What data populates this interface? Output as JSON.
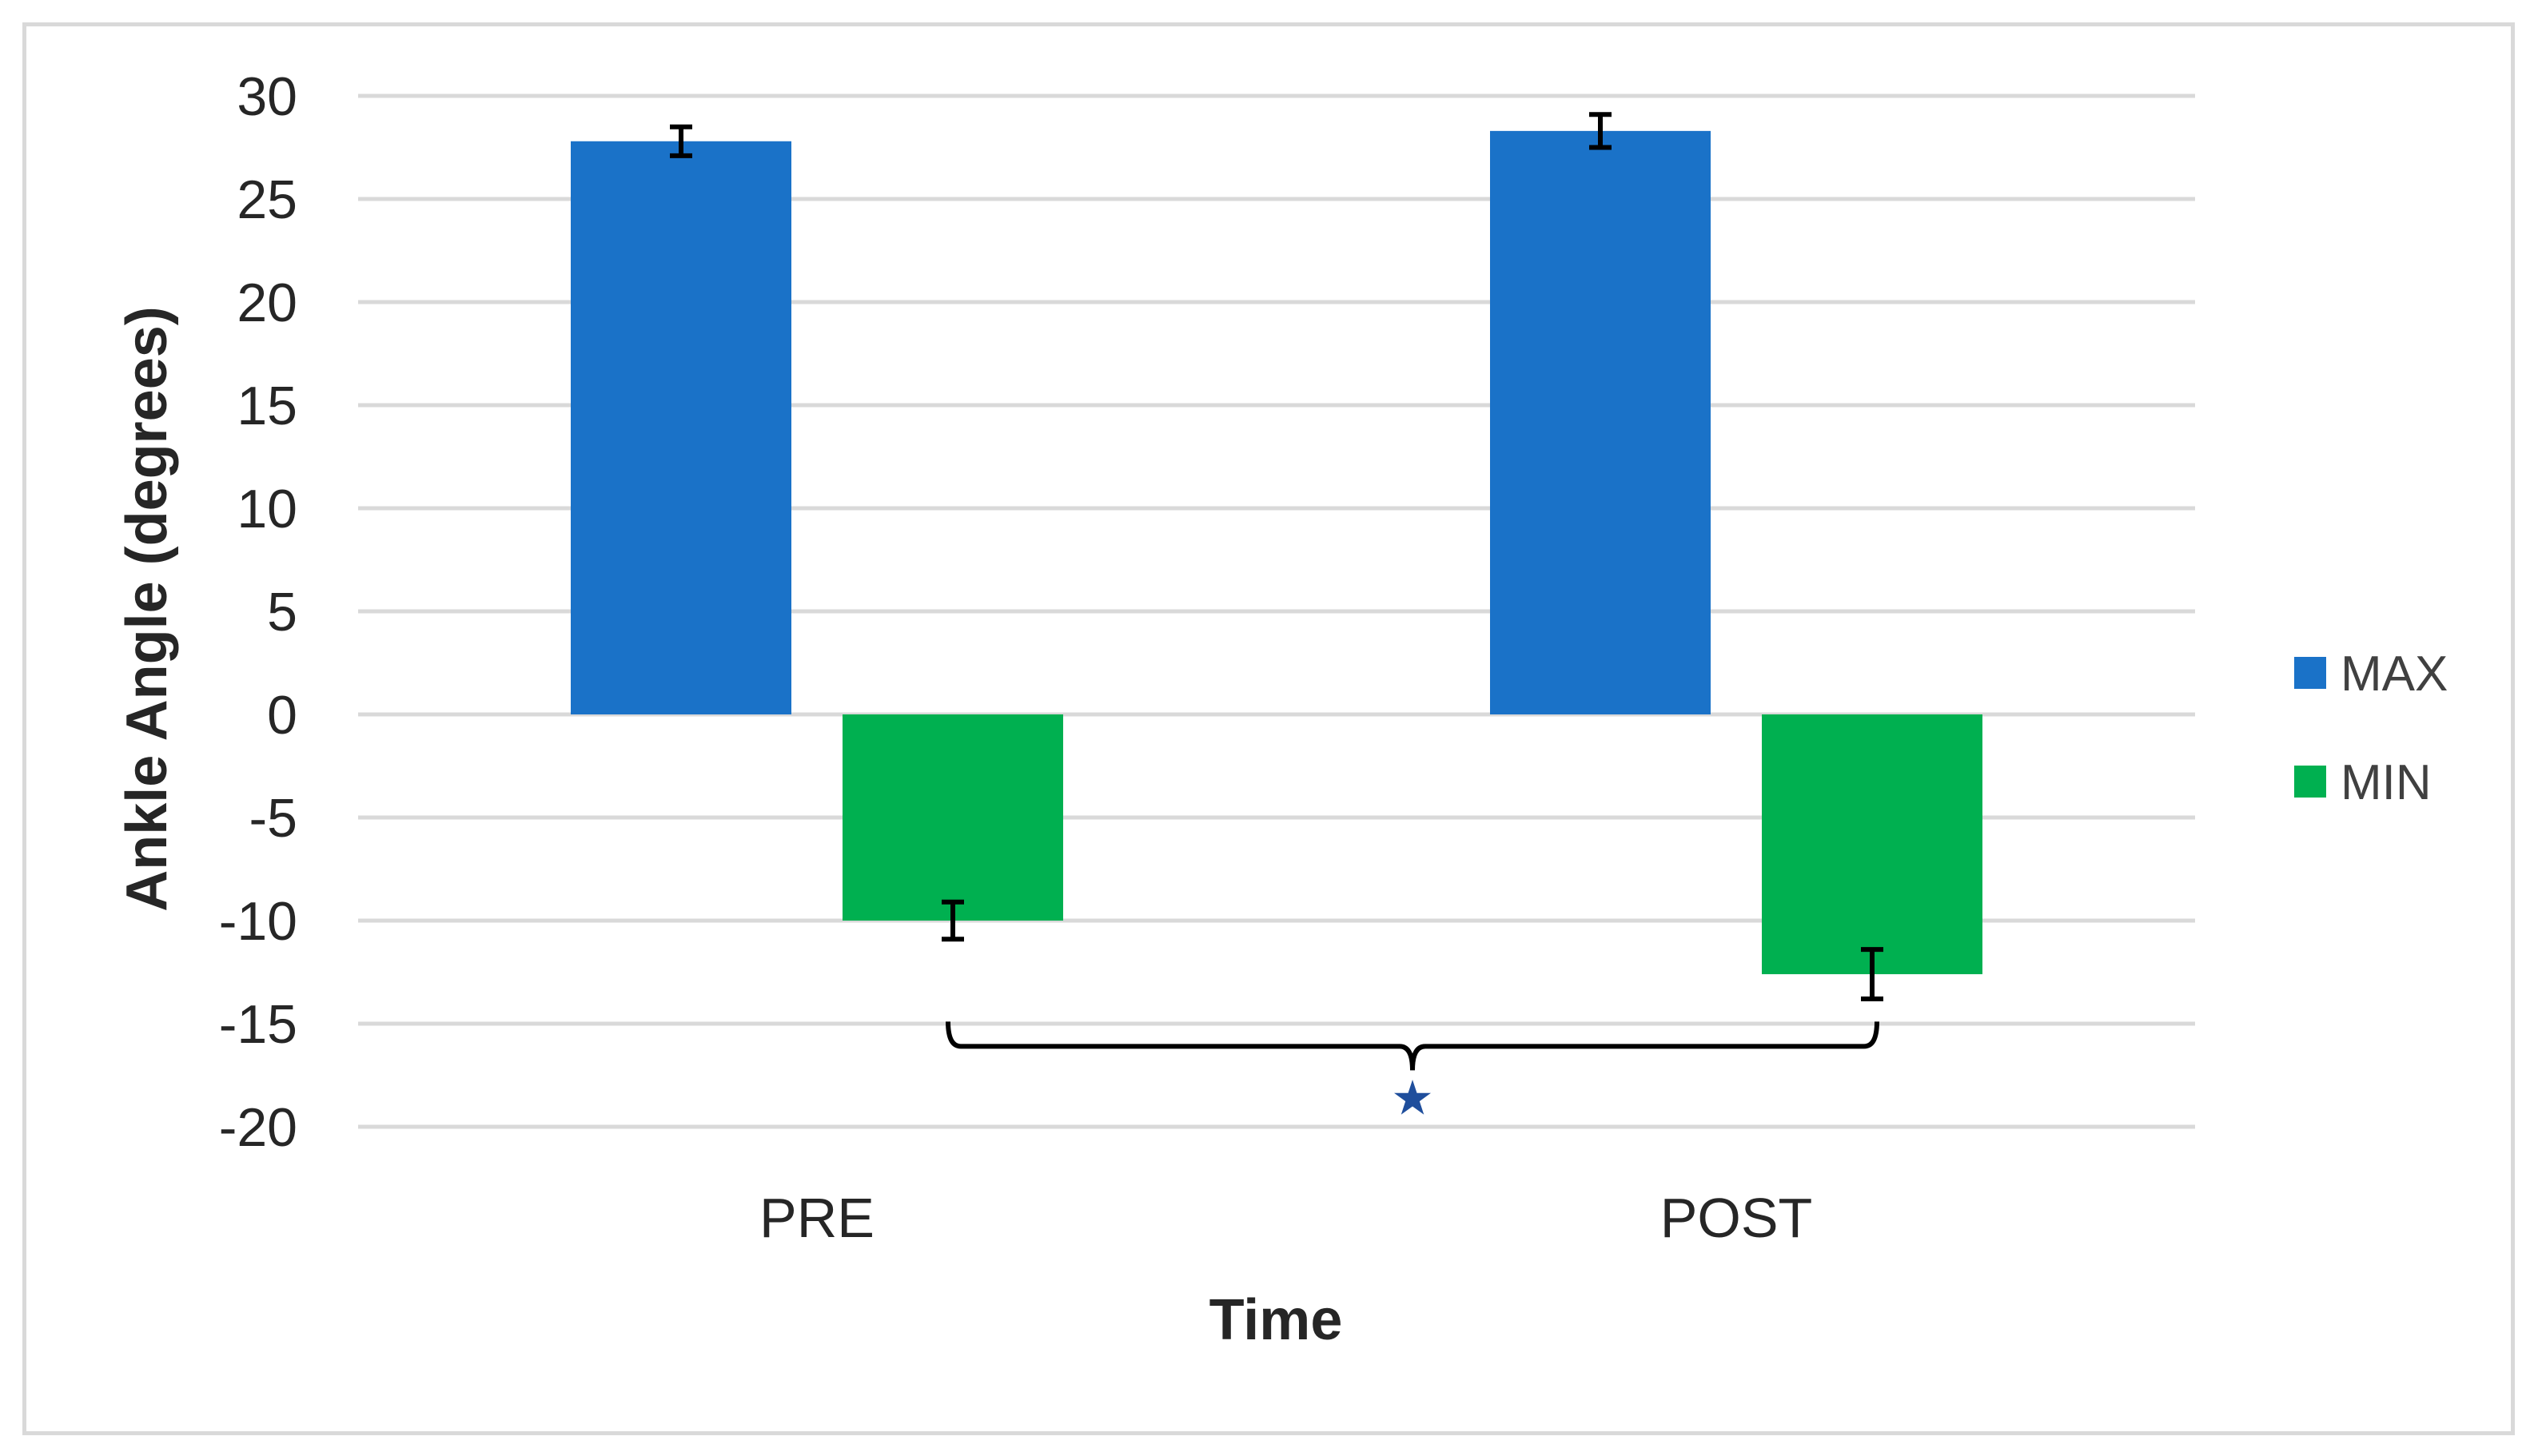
{
  "chart_data": {
    "type": "bar",
    "categories": [
      "PRE",
      "POST"
    ],
    "series": [
      {
        "name": "MAX",
        "color": "#1a72c8",
        "values": [
          27.8,
          28.3
        ],
        "errors": [
          0.7,
          0.8
        ]
      },
      {
        "name": "MIN",
        "color": "#00b050",
        "values": [
          -10.0,
          -12.6
        ],
        "errors": [
          0.9,
          1.2
        ]
      }
    ],
    "xlabel": "Time",
    "ylabel": "Ankle Angle (degrees)",
    "ylim": [
      -20,
      30
    ],
    "yticks": [
      "30",
      "25",
      "20",
      "15",
      "10",
      "5",
      "0",
      "-5",
      "-10",
      "-15",
      "-20"
    ],
    "grid": true,
    "legend_position": "right",
    "annotation": {
      "symbol": "★",
      "color": "#1f4e9c",
      "between": [
        "PRE MIN",
        "POST MIN"
      ]
    }
  }
}
